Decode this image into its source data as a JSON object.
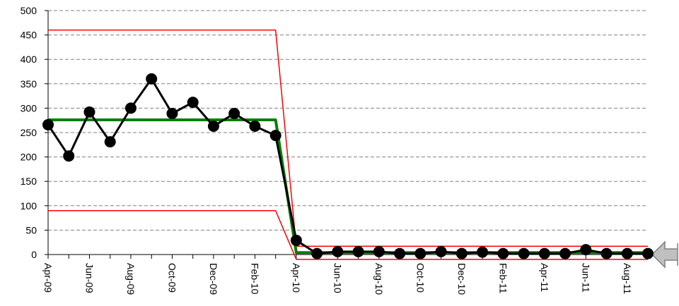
{
  "chart_data": {
    "type": "line",
    "categories": [
      "Apr-09",
      null,
      "Jun-09",
      null,
      "Aug-09",
      null,
      "Oct-09",
      null,
      "Dec-09",
      null,
      "Feb-10",
      null,
      "Apr-10",
      null,
      "Jun-10",
      null,
      "Aug-10",
      null,
      "Oct-10",
      null,
      "Dec-10",
      null,
      "Feb-11",
      null,
      "Apr-11",
      null,
      "Jun-11",
      null,
      "Aug-11",
      null
    ],
    "series": [
      {
        "color": "#ff0000",
        "width": 1.5,
        "markers": false,
        "values": [
          460,
          460,
          460,
          460,
          460,
          460,
          460,
          460,
          460,
          460,
          460,
          460,
          17,
          17,
          17,
          17,
          17,
          17,
          17,
          17,
          17,
          17,
          17,
          17,
          17,
          17,
          17,
          17,
          17,
          17
        ]
      },
      {
        "color": "#ff0000",
        "width": 1.5,
        "markers": false,
        "values": [
          90,
          90,
          90,
          90,
          90,
          90,
          90,
          90,
          90,
          90,
          90,
          90,
          -10,
          -10,
          -10,
          -10,
          -10,
          -10,
          -10,
          -10,
          -10,
          -10,
          -10,
          -10,
          -10,
          -10,
          -10,
          -10,
          -10,
          -10
        ]
      },
      {
        "color": "#008000",
        "width": 4,
        "markers": false,
        "values": [
          276,
          276,
          276,
          276,
          276,
          276,
          276,
          276,
          276,
          276,
          276,
          276,
          4,
          4,
          4,
          4,
          4,
          4,
          4,
          4,
          4,
          4,
          4,
          4,
          4,
          4,
          4,
          4,
          4,
          4
        ]
      },
      {
        "color": "#000000",
        "width": 3,
        "markers": true,
        "values": [
          266,
          202,
          292,
          231,
          300,
          360,
          289,
          312,
          263,
          289,
          263,
          244,
          29,
          2,
          6,
          6,
          6,
          2,
          2,
          6,
          2,
          5,
          2,
          2,
          2,
          2,
          10,
          2,
          2,
          2
        ]
      }
    ],
    "ylim": [
      0,
      500
    ],
    "yticks": [
      0,
      50,
      100,
      150,
      200,
      250,
      300,
      350,
      400,
      450,
      500
    ],
    "grid": true
  }
}
